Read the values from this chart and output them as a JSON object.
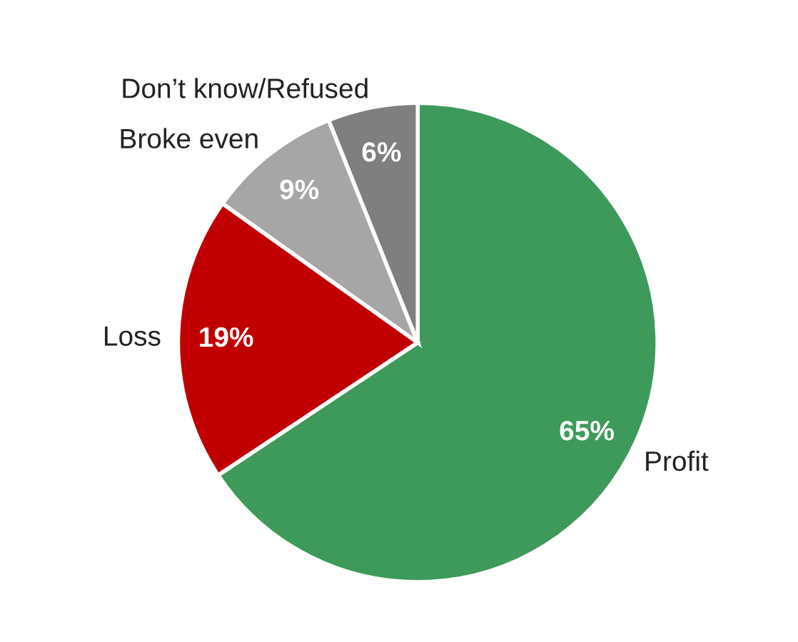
{
  "chart_data": {
    "type": "pie",
    "categories": [
      "Profit",
      "Loss",
      "Broke even",
      "Don’t know/Refused"
    ],
    "values": [
      65,
      19,
      9,
      6
    ],
    "colors": [
      "#3d9a5a",
      "#c00000",
      "#a6a6a6",
      "#7f7f7f"
    ],
    "value_labels": [
      "65%",
      "19%",
      "9%",
      "6%"
    ]
  }
}
